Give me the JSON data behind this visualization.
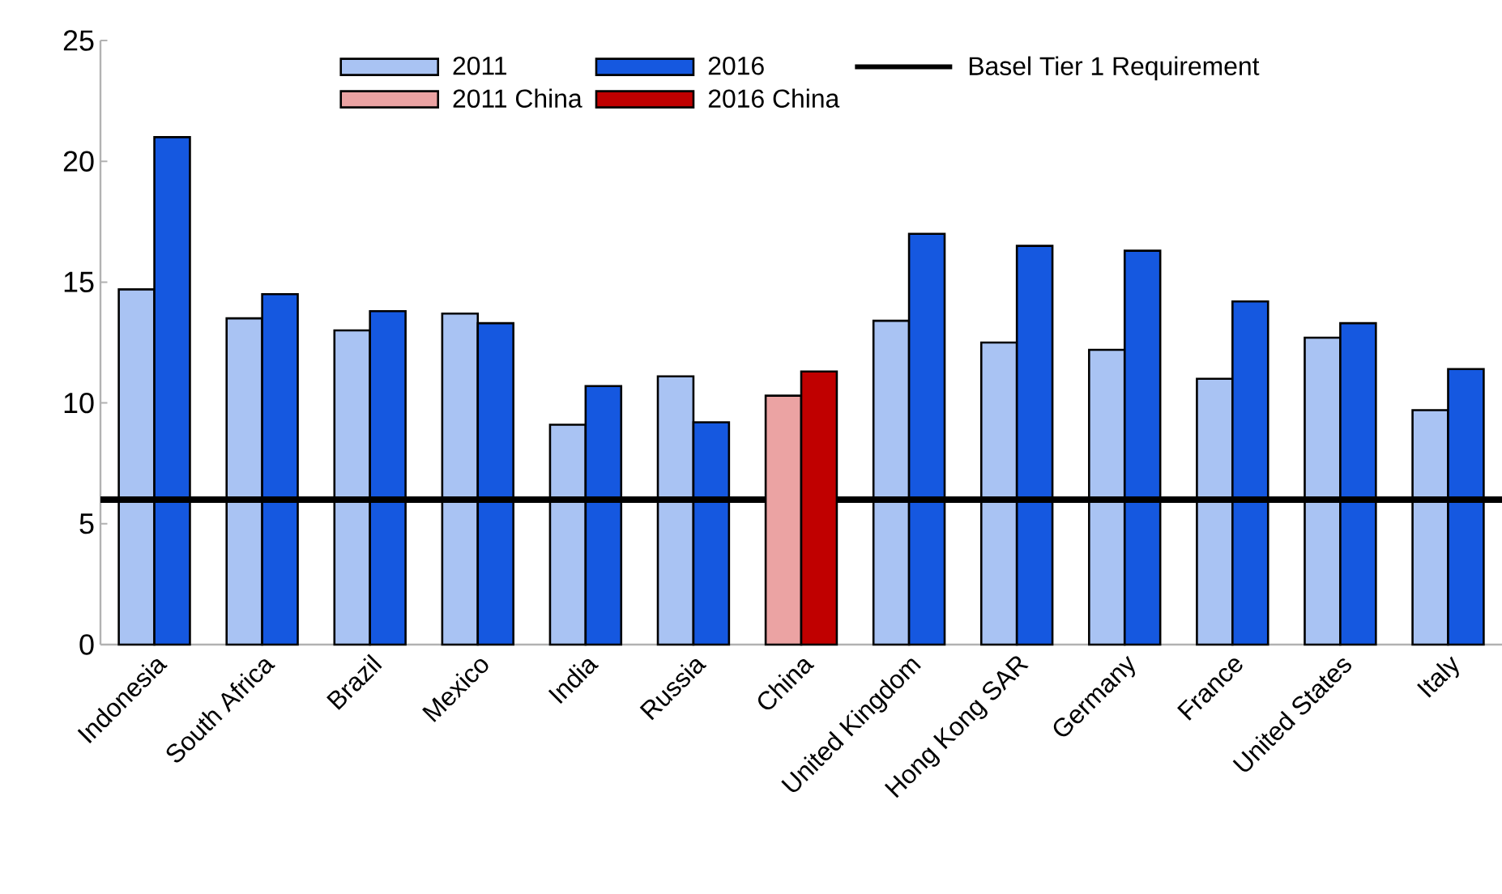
{
  "chart_data": {
    "type": "bar",
    "categories": [
      "Indonesia",
      "South Africa",
      "Brazil",
      "Mexico",
      "India",
      "Russia",
      "China",
      "United Kingdom",
      "Hong Kong SAR",
      "Germany",
      "France",
      "United States",
      "Italy"
    ],
    "series": [
      {
        "name": "2011",
        "color": "#a9c3f3",
        "values": [
          14.7,
          13.5,
          13.0,
          13.7,
          9.1,
          11.1,
          null,
          13.4,
          12.5,
          12.2,
          11.0,
          12.7,
          9.7
        ]
      },
      {
        "name": "2016",
        "color": "#1558e0",
        "values": [
          21.0,
          14.5,
          13.8,
          13.3,
          10.7,
          9.2,
          null,
          17.0,
          16.5,
          16.3,
          14.2,
          13.3,
          11.4
        ]
      },
      {
        "name": "2011 China",
        "color": "#eba3a3",
        "values": [
          null,
          null,
          null,
          null,
          null,
          null,
          10.3,
          null,
          null,
          null,
          null,
          null,
          null
        ]
      },
      {
        "name": "2016 China",
        "color": "#c00000",
        "values": [
          null,
          null,
          null,
          null,
          null,
          null,
          11.3,
          null,
          null,
          null,
          null,
          null,
          null
        ]
      }
    ],
    "ylim": [
      0,
      25
    ],
    "yticks": [
      0,
      5,
      10,
      15,
      20,
      25
    ],
    "grid": false,
    "legend": "top",
    "ref_lines": [
      {
        "axis": "y",
        "value": 6,
        "label": "Basel Tier 1 Requirement",
        "color": "#000000"
      }
    ]
  }
}
